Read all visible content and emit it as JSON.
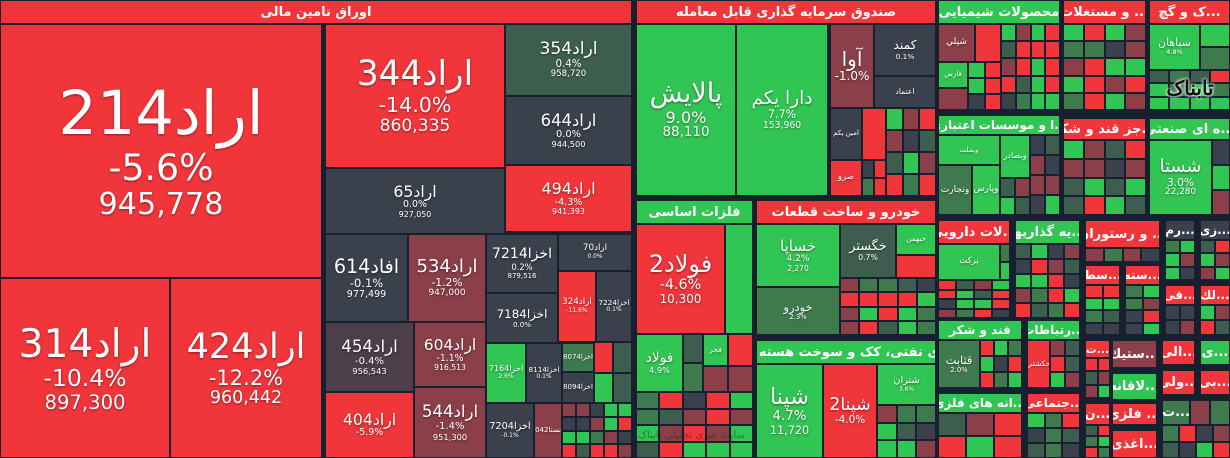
{
  "colors": {
    "red": "#f0353b",
    "green": "#31c553",
    "slate": "#3a404c",
    "dgreen": "#3f7a4e",
    "dred": "#8b3f48",
    "mgreen": "#3d5e4e",
    "mred": "#4c3f4a",
    "bg": "#16202e"
  },
  "logo": "تابناک",
  "watermark": "سایت خبری تحلیلی تابناک",
  "sectors": [
    {
      "title": "اوراق تامین مالی",
      "color": "red",
      "stocks": [
        {
          "name": "اراد214",
          "change": "-5.6%",
          "price": "945,778",
          "color": "red"
        },
        {
          "name": "اراد314",
          "change": "-10.4%",
          "price": "897,300",
          "color": "red"
        },
        {
          "name": "اراد424",
          "change": "-12.2%",
          "price": "960,442",
          "color": "red"
        },
        {
          "name": "اراد344",
          "change": "-14.0%",
          "price": "860,335",
          "color": "red"
        },
        {
          "name": "اراد354",
          "change": "0.4%",
          "price": "958,720",
          "color": "mgreen"
        },
        {
          "name": "اراد644",
          "change": "0.0%",
          "price": "944,500",
          "color": "slate"
        },
        {
          "name": "اراد65",
          "change": "0.0%",
          "price": "927,050",
          "color": "slate"
        },
        {
          "name": "اراد494",
          "change": "-4.3%",
          "price": "941,393",
          "color": "red"
        },
        {
          "name": "افاد614",
          "change": "-0.1%",
          "price": "977,499",
          "color": "slate"
        },
        {
          "name": "اراد534",
          "change": "-1.2%",
          "price": "947,000",
          "color": "dred"
        },
        {
          "name": "اراد454",
          "change": "-0.4%",
          "price": "956,543",
          "color": "mred"
        },
        {
          "name": "اراد404",
          "change": "-5.9%",
          "price": "",
          "color": "red"
        },
        {
          "name": "اراد604",
          "change": "-1.1%",
          "price": "916,513",
          "color": "dred"
        },
        {
          "name": "اراد544",
          "change": "-1.4%",
          "price": "951,300",
          "color": "dred"
        },
        {
          "name": "اخزا7214",
          "change": "0.2%",
          "price": "879,516",
          "color": "slate"
        },
        {
          "name": "اراد70",
          "change": "0.0%",
          "price": "",
          "color": "slate"
        },
        {
          "name": "اراد324",
          "change": "-11.6%",
          "price": "",
          "color": "red"
        },
        {
          "name": "اخزا7224",
          "change": "0.1%",
          "price": "",
          "color": "slate"
        },
        {
          "name": "اخزا7184",
          "change": "0.0%",
          "price": "",
          "color": "slate"
        },
        {
          "name": "اخزا7164",
          "change": "2.6%",
          "price": "",
          "color": "green"
        },
        {
          "name": "اخزا8114",
          "change": "0.1%",
          "price": "",
          "color": "slate"
        },
        {
          "name": "اخزا8074",
          "change": "",
          "price": "",
          "color": "dgreen"
        },
        {
          "name": "اخزا8094",
          "change": "",
          "price": "",
          "color": "slate"
        },
        {
          "name": "اخزا7204",
          "change": "-0.1%",
          "price": "",
          "color": "slate"
        },
        {
          "name": "نستا042",
          "change": "",
          "price": "",
          "color": "dred"
        }
      ]
    },
    {
      "title": "صندوق سرمایه گذاری قابل معامله",
      "color": "red",
      "stocks": [
        {
          "name": "پالایش",
          "change": "9.0%",
          "price": "88,110",
          "color": "green"
        },
        {
          "name": "دارا یکم",
          "change": "7.7%",
          "price": "153,960",
          "color": "green"
        },
        {
          "name": "آوا",
          "change": "-1.0%",
          "price": "",
          "color": "dred"
        },
        {
          "name": "کمند",
          "change": "0.1%",
          "price": "",
          "color": "slate"
        },
        {
          "name": "اعتماد",
          "change": "",
          "price": "",
          "color": "slate"
        },
        {
          "name": "امین یکم",
          "change": "",
          "price": "",
          "color": "slate"
        },
        {
          "name": "",
          "change": "",
          "price": "",
          "color": "red"
        },
        {
          "name": "صرو",
          "change": "",
          "price": "",
          "color": "red"
        }
      ]
    },
    {
      "title": "فلزات اساسی",
      "color": "green",
      "stocks": [
        {
          "name": "فولاد2",
          "change": "-4.6%",
          "price": "10,300",
          "color": "red"
        },
        {
          "name": "",
          "change": "",
          "price": "",
          "color": "green"
        },
        {
          "name": "فولاد",
          "change": "4.9%",
          "price": "",
          "color": "green"
        },
        {
          "name": "فجر",
          "change": "",
          "price": "",
          "color": "green"
        },
        {
          "name": "",
          "change": "",
          "price": "",
          "color": "red"
        }
      ]
    },
    {
      "title": "خودرو و ساخت قطعات",
      "color": "red",
      "stocks": [
        {
          "name": "خساپا",
          "change": "4.2%",
          "price": "2,270",
          "color": "green"
        },
        {
          "name": "خودرو",
          "change": "2.3%",
          "price": "",
          "color": "dgreen"
        },
        {
          "name": "خگستر",
          "change": "0.7%",
          "price": "",
          "color": "mgreen"
        },
        {
          "name": "خبهمن",
          "change": "",
          "price": "",
          "color": "green"
        }
      ]
    },
    {
      "title": "...ی نفتی، کک و سوخت هسته ای",
      "color": "green",
      "stocks": [
        {
          "name": "شپنا",
          "change": "4.7%",
          "price": "11,720",
          "color": "green"
        },
        {
          "name": "شپنا2",
          "change": "-4.0%",
          "price": "",
          "color": "red"
        },
        {
          "name": "شتران",
          "change": "3.6%",
          "price": "",
          "color": "green"
        }
      ]
    },
    {
      "title": "محصولات شیمیایی",
      "color": "green",
      "stocks": [
        {
          "name": "شپلي",
          "change": "",
          "price": "",
          "color": "dred"
        },
        {
          "name": "",
          "change": "",
          "price": "",
          "color": "red"
        },
        {
          "name": "فارس",
          "change": "",
          "price": "",
          "color": "green"
        }
      ]
    },
    {
      "title": "... و مستغلات",
      "color": "red",
      "stocks": []
    },
    {
      "title": "...ک و گچ",
      "color": "red",
      "stocks": [
        {
          "name": "سپاهان",
          "change": "4.8%",
          "price": "",
          "color": "green"
        }
      ]
    },
    {
      "title": "...ا و موسسات اعتباری",
      "color": "green",
      "stocks": [
        {
          "name": "وبملت",
          "change": "",
          "price": "",
          "color": "green"
        },
        {
          "name": "وبصادر",
          "change": "",
          "price": "",
          "color": "green"
        },
        {
          "name": "وتجارت",
          "change": "",
          "price": "",
          "color": "dgreen"
        },
        {
          "name": "وپارس",
          "change": "",
          "price": "",
          "color": "green"
        }
      ]
    },
    {
      "title": "...جز قند و شکر",
      "color": "red",
      "stocks": []
    },
    {
      "title": "...ه ای صنعتی",
      "color": "green",
      "stocks": [
        {
          "name": "شستا",
          "change": "3.0%",
          "price": "22,280",
          "color": "green"
        }
      ]
    },
    {
      "title": "...لات دارویی",
      "color": "red",
      "stocks": [
        {
          "name": "برکت",
          "change": "",
          "price": "",
          "color": "green"
        }
      ]
    },
    {
      "title": "...یه گذاریها",
      "color": "green",
      "stocks": []
    },
    {
      "title": "... و رستوران",
      "color": "red",
      "stocks": []
    },
    {
      "title": "...رم",
      "color": "slate",
      "stocks": []
    },
    {
      "title": "...زی",
      "color": "slate",
      "stocks": []
    },
    {
      "title": "قند و شکر",
      "color": "green",
      "stocks": [
        {
          "name": "قثابت",
          "change": "2.0%",
          "price": "",
          "color": "dgreen"
        }
      ]
    },
    {
      "title": "...رتباطات",
      "color": "green",
      "stocks": [
        {
          "name": "حکشتي",
          "change": "",
          "price": "",
          "color": "red"
        }
      ]
    },
    {
      "title": "...انه های فلزی",
      "color": "green",
      "stocks": []
    },
    {
      "title": "...جتماعی",
      "color": "red",
      "stocks": []
    },
    {
      "title": "...سط",
      "color": "red",
      "stocks": []
    },
    {
      "title": "...سته",
      "color": "red",
      "stocks": []
    },
    {
      "title": "...قی",
      "color": "red",
      "stocks": []
    },
    {
      "title": "...لك",
      "color": "red",
      "stocks": []
    },
    {
      "title": "...ت",
      "color": "red",
      "stocks": []
    },
    {
      "title": "...ستیك",
      "color": "dred",
      "stocks": []
    },
    {
      "title": "...لاقانه",
      "color": "green",
      "stocks": []
    },
    {
      "title": "...الی",
      "color": "red",
      "stocks": []
    },
    {
      "title": "...ی",
      "color": "green",
      "stocks": []
    },
    {
      "title": "...ولی",
      "color": "red",
      "stocks": []
    },
    {
      "title": "...بی",
      "color": "red",
      "stocks": []
    },
    {
      "title": "...ن",
      "color": "red",
      "stocks": []
    },
    {
      "title": "... فلزی",
      "color": "red",
      "stocks": []
    },
    {
      "title": "...اغذی",
      "color": "red",
      "stocks": []
    },
    {
      "title": "...ت",
      "color": "dgreen",
      "stocks": []
    }
  ]
}
